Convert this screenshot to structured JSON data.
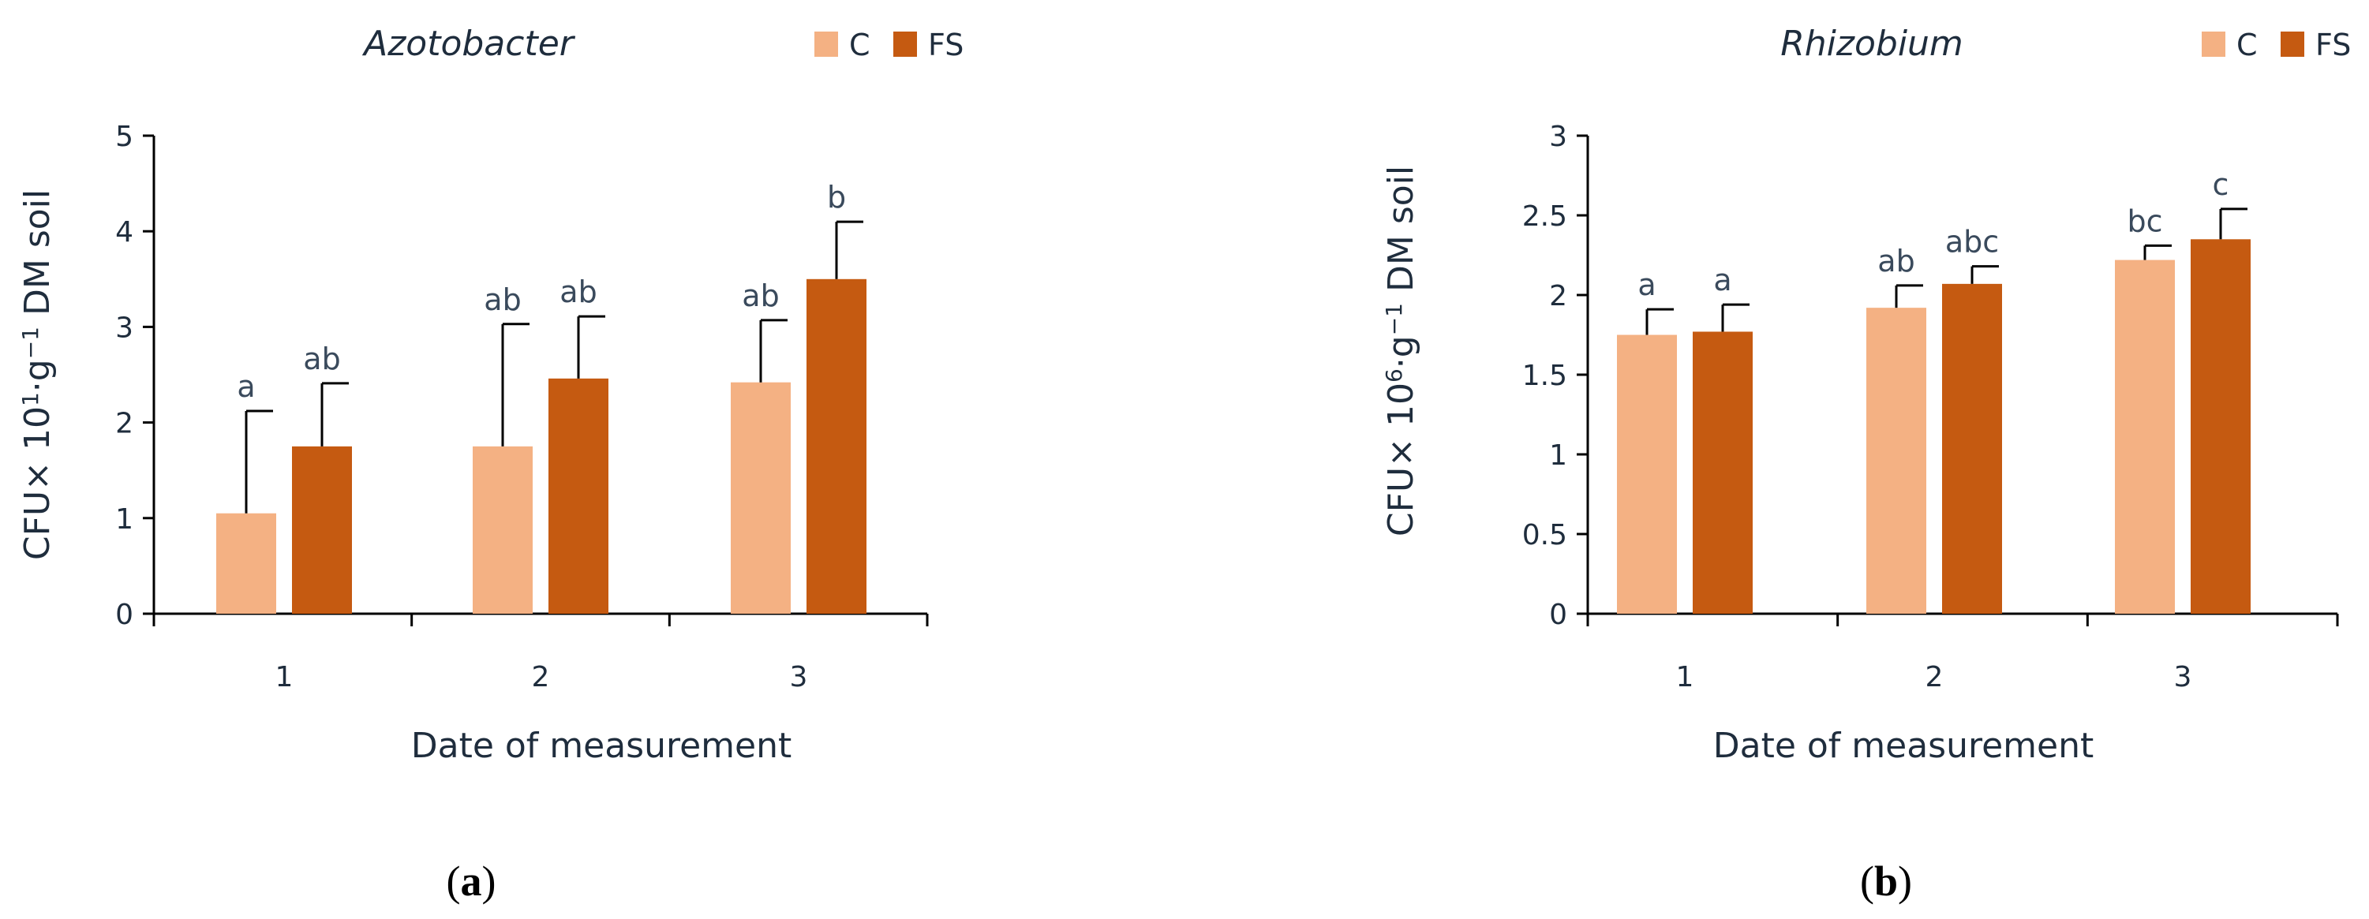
{
  "colors": {
    "C": "#F4B183",
    "FS": "#C55A11",
    "axis": "#000000",
    "text": "#1f2d3d"
  },
  "panel_labels": [
    {
      "open": "(",
      "letter": "a",
      "close": ")"
    },
    {
      "open": "(",
      "letter": "b",
      "close": ")"
    }
  ],
  "chart_data": [
    {
      "type": "bar",
      "title": "Azotobacter",
      "xlabel": "Date of measurement",
      "ylabel_parts": {
        "pre": "CFU× 10",
        "sup1": "1",
        "mid": "·g",
        "sup2": "−1",
        "post": " DM soil"
      },
      "categories": [
        "1",
        "2",
        "3"
      ],
      "ylim": [
        0,
        5
      ],
      "yticks": [
        "0",
        "1",
        "2",
        "3",
        "4",
        "5"
      ],
      "legend": {
        "position": "top-right",
        "entries": [
          "C",
          "FS"
        ]
      },
      "series": [
        {
          "name": "C",
          "values": [
            1.05,
            1.75,
            2.42
          ],
          "errors": [
            1.07,
            1.28,
            0.65
          ],
          "letters": [
            "a",
            "ab",
            "ab"
          ]
        },
        {
          "name": "FS",
          "values": [
            1.75,
            2.46,
            3.5
          ],
          "errors": [
            0.66,
            0.65,
            0.6
          ],
          "letters": [
            "ab",
            "ab",
            "b"
          ]
        }
      ]
    },
    {
      "type": "bar",
      "title": "Rhizobium",
      "xlabel": "Date of measurement",
      "ylabel_parts": {
        "pre": "CFU× 10",
        "sup1": "6",
        "mid": "·g",
        "sup2": "−1",
        "post": " DM soil"
      },
      "categories": [
        "1",
        "2",
        "3"
      ],
      "ylim": [
        0,
        3
      ],
      "yticks": [
        "0",
        "0.5",
        "1",
        "1.5",
        "2",
        "2.5",
        "3"
      ],
      "legend": {
        "position": "top-right",
        "entries": [
          "C",
          "FS"
        ]
      },
      "series": [
        {
          "name": "C",
          "values": [
            1.75,
            1.92,
            2.22
          ],
          "errors": [
            0.16,
            0.14,
            0.09
          ],
          "letters": [
            "a",
            "ab",
            "bc"
          ]
        },
        {
          "name": "FS",
          "values": [
            1.77,
            2.07,
            2.35
          ],
          "errors": [
            0.17,
            0.11,
            0.19
          ],
          "letters": [
            "a",
            "abc",
            "c"
          ]
        }
      ]
    }
  ]
}
